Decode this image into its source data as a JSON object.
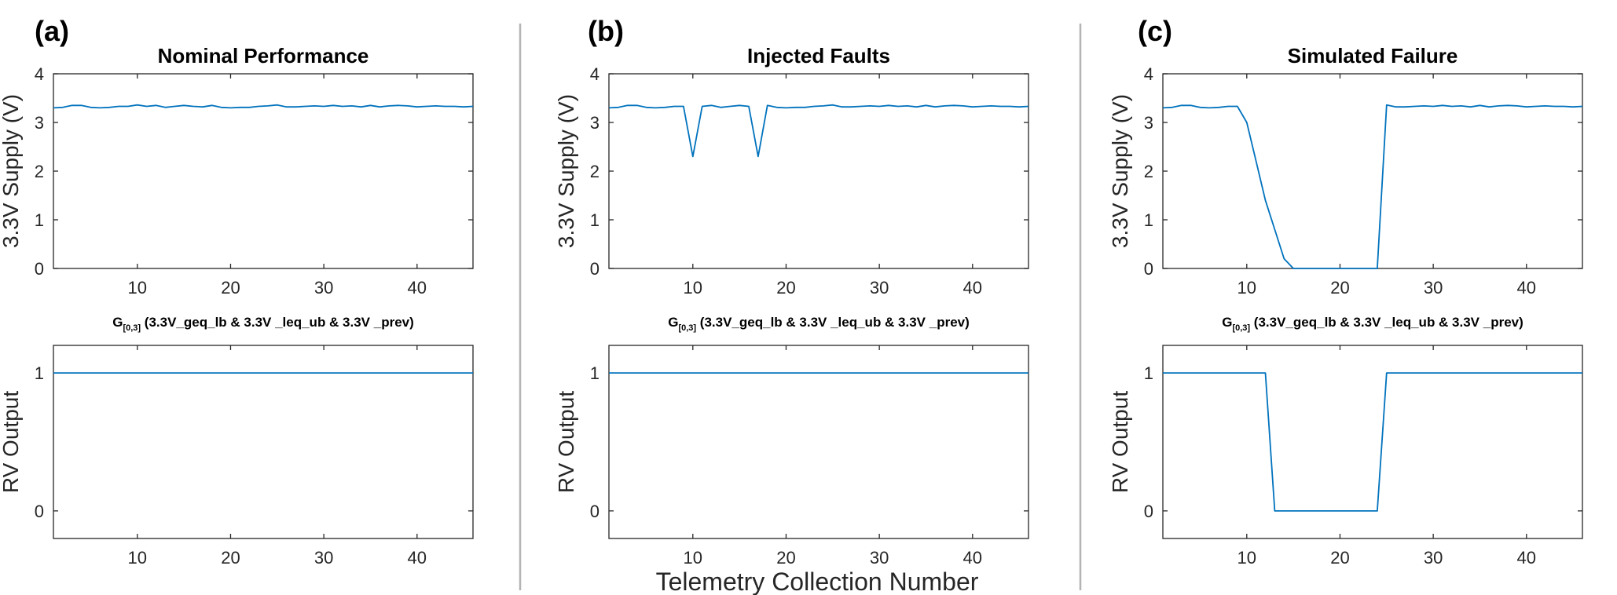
{
  "figure": {
    "xlabel": "Telemetry Collection Number",
    "panels": [
      {
        "letter": "(a)",
        "title": "Nominal Performance"
      },
      {
        "letter": "(b)",
        "title": "Injected Faults"
      },
      {
        "letter": "(c)",
        "title": "Simulated Failure"
      }
    ],
    "subtitle": {
      "main": "G",
      "subscript": "[0,3]",
      "rest": " (3.3V_geq_lb & 3.3V _leq_ub & 3.3V _prev)"
    },
    "colors": {
      "series": "#0072BD",
      "axes": "#262626",
      "divider": "#b4b4b4"
    }
  },
  "chart_data": [
    {
      "type": "line",
      "panel": "(a)",
      "title": "Nominal Performance",
      "ylabel": "3.3V Supply (V)",
      "xlim": [
        1,
        46
      ],
      "ylim": [
        0,
        4
      ],
      "xticks": [
        10,
        20,
        30,
        40
      ],
      "yticks": [
        0,
        1,
        2,
        3,
        4
      ],
      "series": [
        {
          "x": [
            1,
            2,
            3,
            4,
            5,
            6,
            7,
            8,
            9,
            10,
            11,
            12,
            13,
            14,
            15,
            16,
            17,
            18,
            19,
            20,
            21,
            22,
            23,
            24,
            25,
            26,
            27,
            28,
            29,
            30,
            31,
            32,
            33,
            34,
            35,
            36,
            37,
            38,
            39,
            40,
            41,
            42,
            43,
            44,
            45,
            46
          ],
          "y": [
            3.3,
            3.31,
            3.35,
            3.35,
            3.31,
            3.3,
            3.31,
            3.33,
            3.33,
            3.36,
            3.33,
            3.35,
            3.31,
            3.33,
            3.35,
            3.33,
            3.32,
            3.35,
            3.31,
            3.3,
            3.31,
            3.31,
            3.33,
            3.34,
            3.36,
            3.32,
            3.32,
            3.33,
            3.34,
            3.33,
            3.35,
            3.33,
            3.34,
            3.32,
            3.35,
            3.32,
            3.34,
            3.35,
            3.34,
            3.32,
            3.33,
            3.34,
            3.33,
            3.33,
            3.32,
            3.33
          ]
        }
      ]
    },
    {
      "type": "line",
      "panel": "(a)",
      "title": "G[0,3] (3.3V_geq_lb & 3.3V _leq_ub & 3.3V _prev)",
      "ylabel": "RV Output",
      "xlim": [
        1,
        46
      ],
      "ylim": [
        -0.2,
        1.2
      ],
      "xticks": [
        10,
        20,
        30,
        40
      ],
      "yticks": [
        0,
        1
      ],
      "series": [
        {
          "x": [
            1,
            46
          ],
          "y": [
            1,
            1
          ]
        }
      ]
    },
    {
      "type": "line",
      "panel": "(b)",
      "title": "Injected Faults",
      "ylabel": "3.3V Supply (V)",
      "xlim": [
        1,
        46
      ],
      "ylim": [
        0,
        4
      ],
      "xticks": [
        10,
        20,
        30,
        40
      ],
      "yticks": [
        0,
        1,
        2,
        3,
        4
      ],
      "series": [
        {
          "x": [
            1,
            2,
            3,
            4,
            5,
            6,
            7,
            8,
            9,
            10,
            11,
            12,
            13,
            14,
            15,
            16,
            17,
            18,
            19,
            20,
            21,
            22,
            23,
            24,
            25,
            26,
            27,
            28,
            29,
            30,
            31,
            32,
            33,
            34,
            35,
            36,
            37,
            38,
            39,
            40,
            41,
            42,
            43,
            44,
            45,
            46
          ],
          "y": [
            3.3,
            3.31,
            3.35,
            3.35,
            3.31,
            3.3,
            3.31,
            3.33,
            3.33,
            2.3,
            3.33,
            3.35,
            3.31,
            3.33,
            3.35,
            3.33,
            2.3,
            3.35,
            3.31,
            3.3,
            3.31,
            3.31,
            3.33,
            3.34,
            3.36,
            3.32,
            3.32,
            3.33,
            3.34,
            3.33,
            3.35,
            3.33,
            3.34,
            3.32,
            3.35,
            3.32,
            3.34,
            3.35,
            3.34,
            3.32,
            3.33,
            3.34,
            3.33,
            3.33,
            3.32,
            3.33
          ]
        }
      ]
    },
    {
      "type": "line",
      "panel": "(b)",
      "title": "G[0,3] (3.3V_geq_lb & 3.3V _leq_ub & 3.3V _prev)",
      "ylabel": "RV Output",
      "xlim": [
        1,
        46
      ],
      "ylim": [
        -0.2,
        1.2
      ],
      "xticks": [
        10,
        20,
        30,
        40
      ],
      "yticks": [
        0,
        1
      ],
      "series": [
        {
          "x": [
            1,
            46
          ],
          "y": [
            1,
            1
          ]
        }
      ]
    },
    {
      "type": "line",
      "panel": "(c)",
      "title": "Simulated Failure",
      "ylabel": "3.3V Supply (V)",
      "xlim": [
        1,
        46
      ],
      "ylim": [
        0,
        4
      ],
      "xticks": [
        10,
        20,
        30,
        40
      ],
      "yticks": [
        0,
        1,
        2,
        3,
        4
      ],
      "series": [
        {
          "x": [
            1,
            2,
            3,
            4,
            5,
            6,
            7,
            8,
            9,
            10,
            11,
            12,
            13,
            14,
            15,
            16,
            17,
            18,
            19,
            20,
            21,
            22,
            23,
            24,
            25,
            26,
            27,
            28,
            29,
            30,
            31,
            32,
            33,
            34,
            35,
            36,
            37,
            38,
            39,
            40,
            41,
            42,
            43,
            44,
            45,
            46
          ],
          "y": [
            3.3,
            3.31,
            3.35,
            3.35,
            3.31,
            3.3,
            3.31,
            3.33,
            3.33,
            3.0,
            2.2,
            1.4,
            0.8,
            0.2,
            0,
            0,
            0,
            0,
            0,
            0,
            0,
            0,
            0,
            0,
            3.36,
            3.32,
            3.32,
            3.33,
            3.34,
            3.33,
            3.35,
            3.33,
            3.34,
            3.32,
            3.35,
            3.32,
            3.34,
            3.35,
            3.34,
            3.32,
            3.33,
            3.34,
            3.33,
            3.33,
            3.32,
            3.33
          ]
        }
      ]
    },
    {
      "type": "line",
      "panel": "(c)",
      "title": "G[0,3] (3.3V_geq_lb & 3.3V _leq_ub & 3.3V _prev)",
      "ylabel": "RV Output",
      "xlim": [
        1,
        46
      ],
      "ylim": [
        -0.2,
        1.2
      ],
      "xticks": [
        10,
        20,
        30,
        40
      ],
      "yticks": [
        0,
        1
      ],
      "series": [
        {
          "x": [
            1,
            12,
            13,
            24,
            25,
            46
          ],
          "y": [
            1,
            1,
            0,
            0,
            1,
            1
          ]
        }
      ]
    }
  ]
}
